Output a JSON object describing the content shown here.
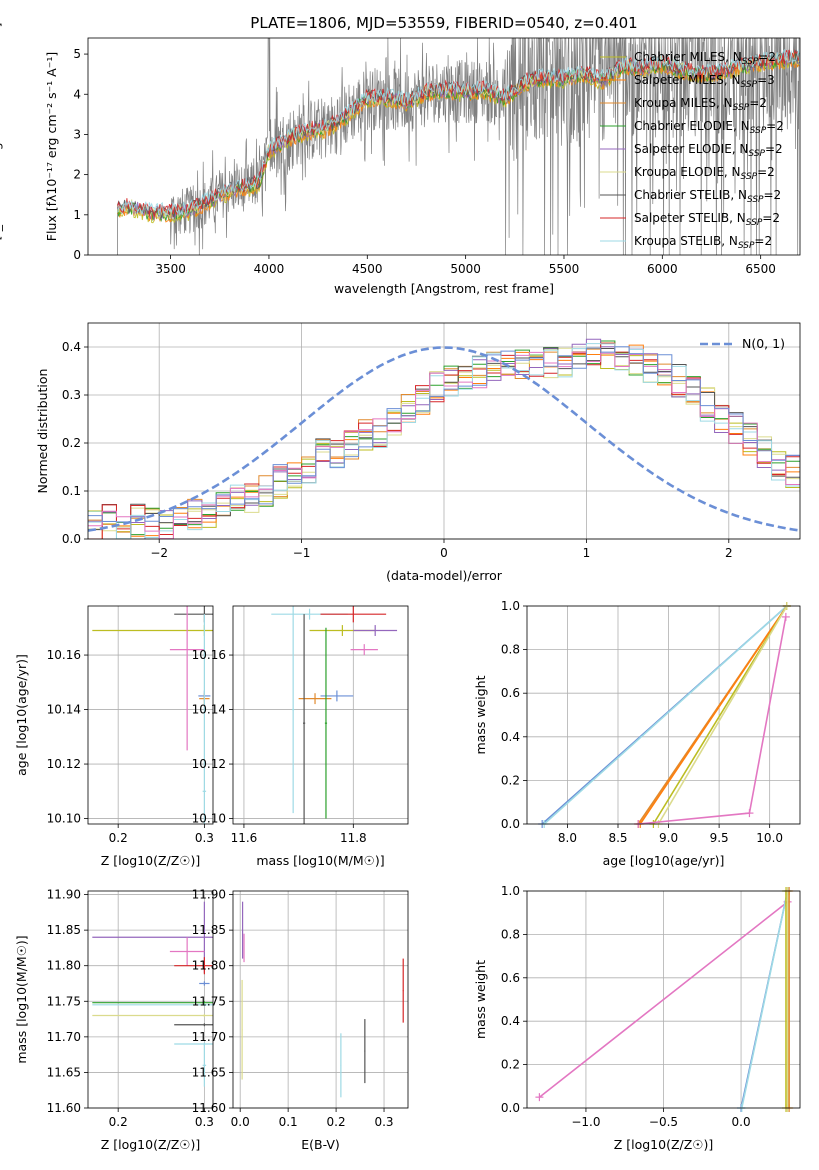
{
  "figure_title": "PLATE=1806, MJD=53559, FIBERID=0540, z=0.401",
  "colors": {
    "chabrier_miles": "#bcbd22",
    "salpeter_miles": "#ff7f0e",
    "kroupa_miles": "#e08a2e",
    "chabrier_elodie": "#2ca02c",
    "salpeter_elodie": "#9467bd",
    "kroupa_elodie": "#dbdb8d",
    "chabrier_stelib": "#555555",
    "salpeter_stelib": "#d62728",
    "kroupa_stelib": "#9edae5",
    "pink": "#e377c2",
    "blue": "#6b8fd6",
    "gray_spectrum": "#808080"
  },
  "chart_data": [
    {
      "type": "line",
      "title": "PLATE=1806, MJD=53559, FIBERID=0540, z=0.401",
      "xlabel": "wavelength [Angstrom, rest frame]",
      "ylabel": "Flux [f_λ 10^-17 erg cm^-2 s^-1 A^-1]",
      "xlim": [
        3080,
        6700
      ],
      "ylim": [
        0,
        5.4
      ],
      "xticks": [
        "3500",
        "4000",
        "4500",
        "5000",
        "5500",
        "6000",
        "6500"
      ],
      "yticks": [
        "0",
        "1",
        "2",
        "3",
        "4",
        "5"
      ],
      "grid": false,
      "legend_position": "top-right",
      "legend": [
        {
          "label": "Chabrier MILES, N_SSP=2",
          "color": "#bcbd22"
        },
        {
          "label": "Salpeter MILES, N_SSP=3",
          "color": "#ff7f0e"
        },
        {
          "label": "Kroupa MILES, N_SSP=2",
          "color": "#e08a2e"
        },
        {
          "label": "Chabrier ELODIE, N_SSP=2",
          "color": "#2ca02c"
        },
        {
          "label": "Salpeter ELODIE, N_SSP=2",
          "color": "#9467bd"
        },
        {
          "label": "Kroupa ELODIE, N_SSP=2",
          "color": "#dbdb8d"
        },
        {
          "label": "Chabrier STELIB, N_SSP=2",
          "color": "#555555"
        },
        {
          "label": "Salpeter STELIB, N_SSP=2",
          "color": "#d62728"
        },
        {
          "label": "Kroupa STELIB, N_SSP=2",
          "color": "#9edae5"
        }
      ],
      "model_continuum": {
        "x": [
          3230,
          3300,
          3400,
          3500,
          3600,
          3700,
          3800,
          3900,
          3950,
          4000,
          4100,
          4200,
          4300,
          4400,
          4500,
          4600,
          4700,
          4800,
          4900,
          5000,
          5100,
          5200,
          5300,
          5400,
          5500,
          5600,
          5700,
          5800,
          5900,
          6000,
          6100,
          6200,
          6300,
          6400,
          6500,
          6600,
          6700
        ],
        "y": [
          1.15,
          1.2,
          1.05,
          1.05,
          1.1,
          1.35,
          1.6,
          1.7,
          1.8,
          2.6,
          2.9,
          3.1,
          3.15,
          3.5,
          3.9,
          3.9,
          3.8,
          4.05,
          4.1,
          4.05,
          4.1,
          3.9,
          4.3,
          4.4,
          4.4,
          4.5,
          4.35,
          4.7,
          4.65,
          4.75,
          4.6,
          4.5,
          4.55,
          4.7,
          4.8,
          4.85,
          4.9
        ]
      },
      "data_noise_range": [
        0,
        5.4
      ]
    },
    {
      "type": "bar",
      "subtype": "step-histogram",
      "xlabel": "(data-model)/error",
      "ylabel": "Normed distribution",
      "xlim": [
        -2.5,
        2.5
      ],
      "ylim": [
        0,
        0.45
      ],
      "xticks": [
        "−2",
        "−1",
        "0",
        "1",
        "2"
      ],
      "yticks": [
        "0.0",
        "0.1",
        "0.2",
        "0.3",
        "0.4"
      ],
      "grid": true,
      "legend_position": "top-right",
      "legend": [
        {
          "label": "N(0, 1)",
          "color": "#6b8fd6",
          "style": "dashed"
        }
      ],
      "bin_edges_start": -2.5,
      "bin_width": 0.1,
      "base_values": [
        0.03,
        0.04,
        0.03,
        0.04,
        0.03,
        0.03,
        0.04,
        0.05,
        0.05,
        0.07,
        0.08,
        0.09,
        0.1,
        0.12,
        0.14,
        0.15,
        0.18,
        0.17,
        0.2,
        0.22,
        0.22,
        0.25,
        0.27,
        0.29,
        0.32,
        0.33,
        0.34,
        0.35,
        0.36,
        0.36,
        0.36,
        0.37,
        0.37,
        0.37,
        0.38,
        0.39,
        0.39,
        0.38,
        0.37,
        0.36,
        0.35,
        0.33,
        0.31,
        0.28,
        0.25,
        0.23,
        0.21,
        0.18,
        0.15,
        0.14,
        0.13,
        0.13,
        0.12,
        0.11,
        0.1,
        0.1,
        0.09,
        0.08,
        0.08,
        0.07
      ],
      "gaussian": {
        "mean": 0,
        "sigma": 1
      }
    },
    {
      "type": "scatter",
      "subtype": "errorbar",
      "xlabel": "Z [log10(Z/Z☉)]",
      "ylabel": "age  [log10(age/yr)]",
      "xlim": [
        0.165,
        0.31
      ],
      "ylim": [
        10.098,
        10.178
      ],
      "xticks": [
        "0.2",
        "0.3"
      ],
      "yticks": [
        "10.10",
        "10.12",
        "10.14",
        "10.16"
      ],
      "grid": true,
      "points": [
        {
          "x": 0.3,
          "y": 10.169,
          "xerr": 0.13,
          "yerr": 0.002,
          "color": "#bcbd22"
        },
        {
          "x": 0.3,
          "y": 10.175,
          "xerr": 0.035,
          "yerr": 0.003,
          "color": "#555555"
        },
        {
          "x": 0.28,
          "y": 10.162,
          "xerr": 0.02,
          "yerr": 0.037,
          "color": "#e377c2"
        },
        {
          "x": 0.3,
          "y": 10.145,
          "xerr": 0.007,
          "yerr": 0.002,
          "color": "#6b8fd6"
        },
        {
          "x": 0.3,
          "y": 10.144,
          "xerr": 0.006,
          "yerr": 0.002,
          "color": "#e08a2e"
        },
        {
          "x": 0.3,
          "y": 10.11,
          "xerr": 0.002,
          "yerr": 0.065,
          "color": "#9edae5"
        }
      ]
    },
    {
      "type": "scatter",
      "subtype": "errorbar",
      "xlabel": "mass [log10(M/M☉)]",
      "ylabel": "",
      "xlim": [
        11.58,
        11.9
      ],
      "ylim": [
        10.098,
        10.178
      ],
      "xticks": [
        "11.6",
        "11.8"
      ],
      "yticks": [
        "10.10",
        "10.12",
        "10.14",
        "10.16"
      ],
      "grid": true,
      "points": [
        {
          "x": 11.72,
          "y": 10.175,
          "xerr": 0.07,
          "yerr": 0.002,
          "color": "#9edae5"
        },
        {
          "x": 11.8,
          "y": 10.175,
          "xerr": 0.06,
          "yerr": 0.003,
          "color": "#d62728"
        },
        {
          "x": 11.78,
          "y": 10.169,
          "xerr": 0.06,
          "yerr": 0.002,
          "color": "#bcbd22"
        },
        {
          "x": 11.84,
          "y": 10.169,
          "xerr": 0.04,
          "yerr": 0.002,
          "color": "#9467bd"
        },
        {
          "x": 11.82,
          "y": 10.162,
          "xerr": 0.025,
          "yerr": 0.002,
          "color": "#e377c2"
        },
        {
          "x": 11.77,
          "y": 10.145,
          "xerr": 0.03,
          "yerr": 0.002,
          "color": "#6b8fd6"
        },
        {
          "x": 11.73,
          "y": 10.144,
          "xerr": 0.03,
          "yerr": 0.002,
          "color": "#e08a2e"
        },
        {
          "x": 11.71,
          "y": 10.135,
          "xerr": 0.002,
          "yerr": 0.04,
          "color": "#555555"
        },
        {
          "x": 11.75,
          "y": 10.135,
          "xerr": 0.002,
          "yerr": 0.035,
          "color": "#2ca02c"
        },
        {
          "x": 11.69,
          "y": 10.14,
          "xerr": 0.002,
          "yerr": 0.038,
          "color": "#9edae5"
        }
      ]
    },
    {
      "type": "line",
      "xlabel": "age  [log10(age/yr)]",
      "ylabel": "mass weight",
      "xlim": [
        7.6,
        10.3
      ],
      "ylim": [
        0,
        1
      ],
      "xticks": [
        "8.0",
        "8.5",
        "9.0",
        "9.5",
        "10.0"
      ],
      "yticks": [
        "0.0",
        "0.2",
        "0.4",
        "0.6",
        "0.8",
        "1.0"
      ],
      "grid": true,
      "series": [
        {
          "color": "#6b8fd6",
          "x": [
            7.75,
            10.17
          ],
          "y": [
            0.0,
            1.0
          ]
        },
        {
          "color": "#9edae5",
          "x": [
            7.77,
            10.17
          ],
          "y": [
            0.0,
            1.0
          ]
        },
        {
          "color": "#e08a2e",
          "x": [
            8.7,
            10.17
          ],
          "y": [
            0.0,
            1.0
          ]
        },
        {
          "color": "#ff7f0e",
          "x": [
            8.72,
            10.17
          ],
          "y": [
            0.0,
            1.0
          ]
        },
        {
          "color": "#bcbd22",
          "x": [
            8.85,
            10.17
          ],
          "y": [
            0.0,
            1.0
          ]
        },
        {
          "color": "#dbdb8d",
          "x": [
            8.9,
            10.17
          ],
          "y": [
            0.0,
            1.0
          ]
        },
        {
          "color": "#e377c2",
          "x": [
            8.7,
            9.8,
            10.16
          ],
          "y": [
            0.0,
            0.05,
            0.95
          ]
        }
      ]
    },
    {
      "type": "scatter",
      "subtype": "errorbar",
      "xlabel": "Z [log10(Z/Z☉)]",
      "ylabel": "mass [log10(M/M☉)]",
      "xlim": [
        0.165,
        0.31
      ],
      "ylim": [
        11.6,
        11.905
      ],
      "xticks": [
        "0.2",
        "0.3"
      ],
      "yticks": [
        "11.60",
        "11.65",
        "11.70",
        "11.75",
        "11.80",
        "11.85",
        "11.90"
      ],
      "grid": true,
      "points": [
        {
          "x": 0.3,
          "y": 11.84,
          "xerr": 0.13,
          "yerr": 0.05,
          "color": "#9467bd"
        },
        {
          "x": 0.28,
          "y": 11.82,
          "xerr": 0.02,
          "yerr": 0.02,
          "color": "#e377c2"
        },
        {
          "x": 0.3,
          "y": 11.8,
          "xerr": 0.035,
          "yerr": 0.012,
          "color": "#d62728"
        },
        {
          "x": 0.3,
          "y": 11.775,
          "xerr": 0.006,
          "yerr": 0.003,
          "color": "#6b8fd6"
        },
        {
          "x": 0.3,
          "y": 11.748,
          "xerr": 0.13,
          "yerr": 0.002,
          "color": "#2ca02c"
        },
        {
          "x": 0.3,
          "y": 11.745,
          "xerr": 0.13,
          "yerr": 0.002,
          "color": "#9edae5"
        },
        {
          "x": 0.3,
          "y": 11.73,
          "xerr": 0.13,
          "yerr": 0.002,
          "color": "#dbdb8d"
        },
        {
          "x": 0.3,
          "y": 11.717,
          "xerr": 0.035,
          "yerr": 0.002,
          "color": "#555555"
        },
        {
          "x": 0.3,
          "y": 11.69,
          "xerr": 0.035,
          "yerr": 0.002,
          "color": "#9edae5"
        },
        {
          "x": 0.3,
          "y": 11.66,
          "xerr": 0.002,
          "yerr": 0.03,
          "color": "#9edae5"
        }
      ]
    },
    {
      "type": "scatter",
      "subtype": "errorbar",
      "xlabel": "E(B-V)",
      "ylabel": "",
      "xlim": [
        -0.015,
        0.35
      ],
      "ylim": [
        11.6,
        11.905
      ],
      "xticks": [
        "0.0",
        "0.1",
        "0.2",
        "0.3"
      ],
      "yticks": [
        "11.60",
        "11.65",
        "11.70",
        "11.75",
        "11.80",
        "11.85",
        "11.90"
      ],
      "grid": true,
      "points": [
        {
          "x": 0.005,
          "y": 11.85,
          "xerr": 0.001,
          "yerr": 0.04,
          "color": "#9467bd"
        },
        {
          "x": 0.008,
          "y": 11.825,
          "xerr": 0.001,
          "yerr": 0.02,
          "color": "#e377c2"
        },
        {
          "x": 0.004,
          "y": 11.71,
          "xerr": 0.001,
          "yerr": 0.07,
          "color": "#dbdb8d"
        },
        {
          "x": 0.21,
          "y": 11.66,
          "xerr": 0.001,
          "yerr": 0.045,
          "color": "#9edae5"
        },
        {
          "x": 0.26,
          "y": 11.68,
          "xerr": 0.001,
          "yerr": 0.045,
          "color": "#555555"
        },
        {
          "x": 0.34,
          "y": 11.765,
          "xerr": 0.001,
          "yerr": 0.045,
          "color": "#d62728"
        }
      ]
    },
    {
      "type": "line",
      "xlabel": "Z [log10(Z/Z☉)]",
      "ylabel": "mass weight",
      "xlim": [
        -1.38,
        0.38
      ],
      "ylim": [
        0,
        1
      ],
      "xticks": [
        "−1.0",
        "−0.5",
        "0.0"
      ],
      "yticks": [
        "0.0",
        "0.2",
        "0.4",
        "0.6",
        "0.8",
        "1.0"
      ],
      "grid": true,
      "series": [
        {
          "color": "#e377c2",
          "x": [
            -1.3,
            0.3
          ],
          "y": [
            0.05,
            0.95
          ]
        },
        {
          "color": "#6b8fd6",
          "x": [
            0.0,
            0.3
          ],
          "y": [
            0.0,
            1.0
          ]
        },
        {
          "color": "#9edae5",
          "x": [
            0.005,
            0.3
          ],
          "y": [
            0.0,
            1.0
          ]
        },
        {
          "color": "#bcbd22",
          "x": [
            0.29,
            0.29
          ],
          "y": [
            0.0,
            1.0
          ]
        },
        {
          "color": "#dbdb8d",
          "x": [
            0.3,
            0.3
          ],
          "y": [
            0.0,
            1.0
          ]
        },
        {
          "color": "#e08a2e",
          "x": [
            0.31,
            0.31
          ],
          "y": [
            0.0,
            1.0
          ]
        }
      ]
    }
  ]
}
